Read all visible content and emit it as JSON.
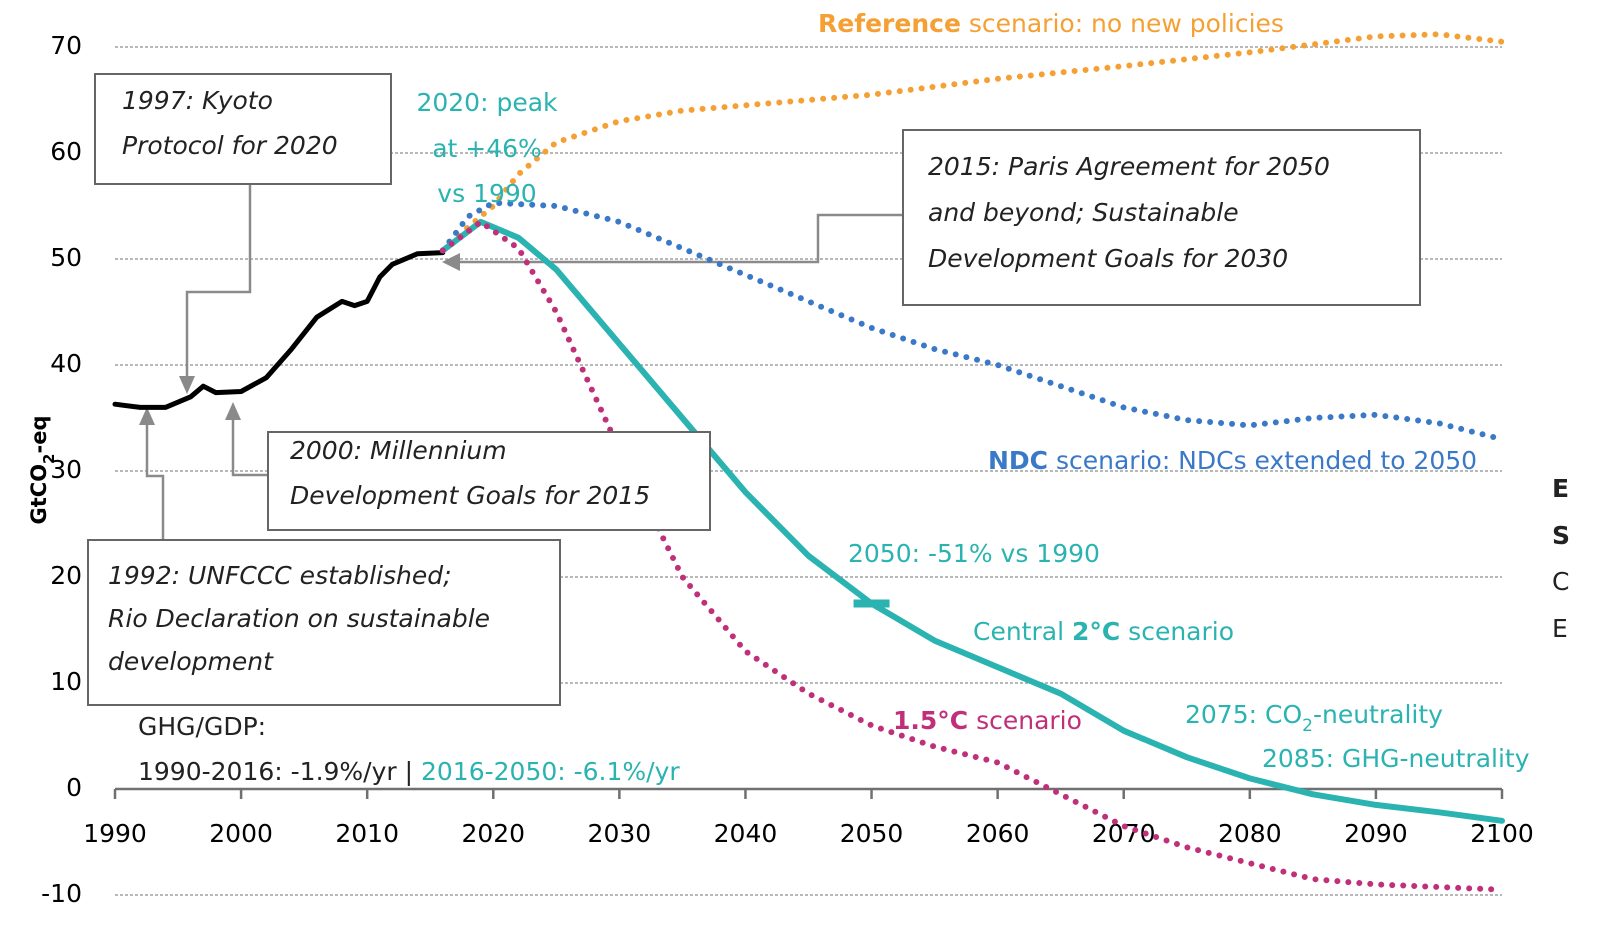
{
  "chart_data": {
    "type": "line",
    "ylabel": [
      "GtCO",
      "2",
      "-eq"
    ],
    "xlim": [
      1990,
      2100
    ],
    "xticks": [
      1990,
      2000,
      2010,
      2020,
      2030,
      2040,
      2050,
      2060,
      2070,
      2080,
      2090,
      2100
    ],
    "ylim": [
      -10,
      70
    ],
    "yticks": [
      -10,
      0,
      10,
      20,
      30,
      40,
      50,
      60,
      70
    ],
    "grid": true,
    "series": [
      {
        "color": "#000000",
        "style": "solid",
        "x": [
          1990,
          1992,
          1994,
          1996,
          1997,
          1998,
          2000,
          2002,
          2004,
          2006,
          2008,
          2009,
          2010,
          2011,
          2012,
          2014,
          2016
        ],
        "values": [
          36.3,
          36,
          36,
          37,
          38,
          37.4,
          37.5,
          38.8,
          41.5,
          44.5,
          46,
          45.6,
          46,
          48.3,
          49.5,
          50.5,
          50.6
        ]
      },
      {
        "color": "#f5a034",
        "style": "dotted",
        "x": [
          2016,
          2018,
          2020,
          2022,
          2025,
          2030,
          2035,
          2040,
          2050,
          2060,
          2070,
          2080,
          2090,
          2095,
          2100
        ],
        "values": [
          50.8,
          53,
          55,
          58,
          61,
          63,
          64,
          64.5,
          65.5,
          67,
          68.2,
          69.5,
          71,
          71.2,
          70.5
        ]
      },
      {
        "color": "#3a78c8",
        "style": "dotted",
        "x": [
          2016,
          2018,
          2020,
          2025,
          2030,
          2035,
          2040,
          2045,
          2050,
          2055,
          2060,
          2065,
          2070,
          2075,
          2080,
          2085,
          2090,
          2095,
          2100
        ],
        "values": [
          50.8,
          54,
          55.3,
          55,
          53.5,
          51,
          48.5,
          46,
          43.5,
          41.5,
          40,
          38,
          36,
          34.8,
          34.3,
          35,
          35.3,
          34.5,
          33
        ]
      },
      {
        "color": "#2ab3b0",
        "style": "solid",
        "x": [
          2016,
          2019,
          2022,
          2025,
          2030,
          2035,
          2040,
          2045,
          2050,
          2055,
          2060,
          2065,
          2070,
          2075,
          2080,
          2085,
          2090,
          2095,
          2100
        ],
        "values": [
          50.8,
          53.5,
          52,
          49,
          42,
          35,
          28,
          22,
          17.5,
          14,
          11.5,
          9,
          5.5,
          3,
          1,
          -0.5,
          -1.5,
          -2.2,
          -3
        ]
      },
      {
        "color": "#c0307a",
        "style": "dotted",
        "x": [
          2016,
          2019,
          2022,
          2025,
          2030,
          2035,
          2040,
          2045,
          2050,
          2055,
          2060,
          2065,
          2070,
          2075,
          2080,
          2085,
          2090,
          2100
        ],
        "values": [
          50.8,
          53.5,
          51,
          45,
          32,
          20,
          13,
          9,
          6,
          4,
          2.5,
          -0.5,
          -3.5,
          -5.5,
          -7,
          -8.5,
          -9,
          -9.5
        ]
      }
    ],
    "annotations": [
      {
        "lines": [
          [
            {
              "text": "Reference",
              "color": "#f5a034",
              "bold": true
            },
            {
              "text": " scenario: no new policies",
              "color": "#f5a034"
            }
          ]
        ]
      },
      {
        "box": true,
        "italic": true,
        "lines": [
          [
            {
              "text": "1997: Kyoto"
            }
          ],
          [
            {
              "text": "Protocol for 2020"
            }
          ]
        ]
      },
      {
        "anchor": "middle",
        "lines": [
          [
            {
              "text": "2020: peak",
              "color": "#2ab3b0"
            }
          ],
          [
            {
              "text": "at +46%",
              "color": "#2ab3b0"
            }
          ],
          [
            {
              "text": "vs 1990",
              "color": "#2ab3b0"
            }
          ]
        ]
      },
      {
        "box": true,
        "italic": true,
        "lines": [
          [
            {
              "text": "2015: Paris Agreement for 2050"
            }
          ],
          [
            {
              "text": "and beyond; Sustainable"
            }
          ],
          [
            {
              "text": "Development Goals for 2030"
            }
          ]
        ]
      },
      {
        "box": true,
        "italic": true,
        "lines": [
          [
            {
              "text": "2000: Millennium"
            }
          ],
          [
            {
              "text": "Development Goals for 2015"
            }
          ]
        ]
      },
      {
        "box": true,
        "italic": true,
        "lines": [
          [
            {
              "text": "1992: UNFCCC established;"
            }
          ],
          [
            {
              "text": "Rio Declaration on sustainable"
            }
          ],
          [
            {
              "text": "development"
            }
          ]
        ]
      },
      {
        "lines": [
          [
            {
              "text": "NDC",
              "color": "#3a78c8",
              "bold": true
            },
            {
              "text": " scenario: NDCs extended to 2050",
              "color": "#3a78c8"
            }
          ]
        ]
      },
      {
        "lines": [
          [
            {
              "text": "2050: -51% vs 1990",
              "color": "#2ab3b0"
            }
          ]
        ]
      },
      {
        "lines": [
          [
            {
              "text": "Central ",
              "color": "#2ab3b0"
            },
            {
              "text": "2°C",
              "color": "#2ab3b0",
              "bold": true
            },
            {
              "text": " scenario",
              "color": "#2ab3b0"
            }
          ]
        ]
      },
      {
        "lines": [
          [
            {
              "text": "1.5°C",
              "color": "#c0307a",
              "bold": true
            },
            {
              "text": " scenario",
              "color": "#c0307a"
            }
          ]
        ]
      },
      {
        "lines": [
          [
            {
              "text": "2075: CO",
              "color": "#2ab3b0"
            },
            {
              "text": "2",
              "color": "#2ab3b0",
              "sub": true
            },
            {
              "text": "-neutrality",
              "color": "#2ab3b0"
            }
          ]
        ]
      },
      {
        "lines": [
          [
            {
              "text": "2085: GHG-neutrality",
              "color": "#2ab3b0"
            }
          ]
        ]
      },
      {
        "lines": [
          [
            {
              "text": "GHG/GDP:"
            }
          ],
          [
            {
              "text": "1990-2016: -1.9%/yr | "
            },
            {
              "text": "2016-2050: -6.1%/yr",
              "color": "#2ab3b0"
            }
          ]
        ]
      },
      {
        "lines": [
          [
            {
              "text": "E",
              "bold": true
            }
          ],
          [
            {
              "text": "S",
              "bold": true
            }
          ],
          [
            {
              "text": "C"
            }
          ],
          [
            {
              "text": "E"
            }
          ]
        ]
      }
    ]
  }
}
